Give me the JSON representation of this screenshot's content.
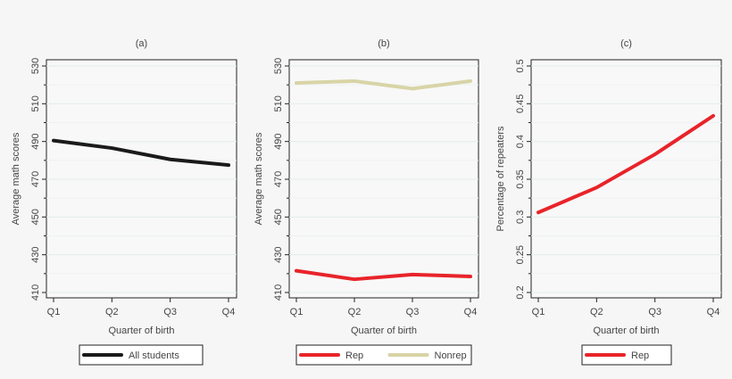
{
  "chart_data": [
    {
      "type": "line",
      "title": "(a)",
      "xlabel": "Quarter of birth",
      "ylabel": "Average math scores",
      "categories": [
        "Q1",
        "Q2",
        "Q3",
        "Q4"
      ],
      "ylim": [
        410,
        530
      ],
      "yticks": [
        410,
        430,
        450,
        470,
        490,
        510,
        530
      ],
      "grid": true,
      "legend_position": "bottom",
      "series": [
        {
          "name": "All students",
          "values": [
            490.5,
            486.5,
            480.5,
            477.5
          ],
          "color": "#1a1a1a",
          "dashed": false
        }
      ]
    },
    {
      "type": "line",
      "title": "(b)",
      "xlabel": "Quarter of birth",
      "ylabel": "Average math scores",
      "categories": [
        "Q1",
        "Q2",
        "Q3",
        "Q4"
      ],
      "ylim": [
        410,
        530
      ],
      "yticks": [
        410,
        430,
        450,
        470,
        490,
        510,
        530
      ],
      "grid": true,
      "legend_position": "bottom",
      "series": [
        {
          "name": "Rep",
          "values": [
            421.5,
            417,
            419.5,
            418.5
          ],
          "color": "#e8242a",
          "dashed": false
        },
        {
          "name": "Nonrep",
          "values": [
            521,
            522,
            518,
            522
          ],
          "color": "#d8d4a6",
          "dashed": true
        }
      ]
    },
    {
      "type": "line",
      "title": "(c)",
      "xlabel": "Quarter of birth",
      "ylabel": "Percentage of repeaters",
      "categories": [
        "Q1",
        "Q2",
        "Q3",
        "Q4"
      ],
      "ylim": [
        0.2,
        0.5
      ],
      "yticks": [
        0.2,
        0.25,
        0.3,
        0.35,
        0.4,
        0.45,
        0.5
      ],
      "grid": true,
      "legend_position": "bottom",
      "series": [
        {
          "name": "Rep",
          "values": [
            0.306,
            0.339,
            0.383,
            0.434
          ],
          "color": "#e8242a",
          "dashed": false
        }
      ]
    }
  ]
}
